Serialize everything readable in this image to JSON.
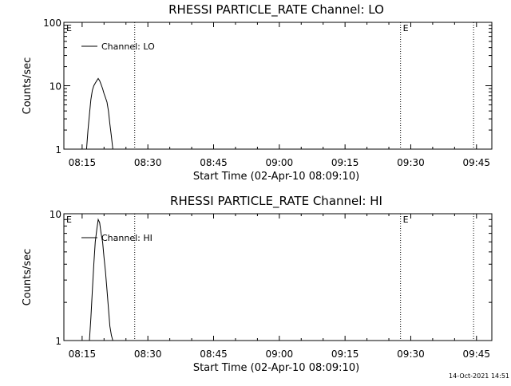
{
  "figure": {
    "timestamp": "14-Oct-2021 14:51"
  },
  "chart_data": [
    {
      "type": "line",
      "title": "RHESSI PARTICLE_RATE Channel: LO",
      "xlabel": "Start Time (02-Apr-10 08:09:10)",
      "ylabel": "Counts/sec",
      "yscale": "log",
      "xlim": [
        "08:10:50",
        "09:48:30"
      ],
      "ylim": [
        1,
        100
      ],
      "x_ticks": [
        "08:15",
        "08:30",
        "08:45",
        "09:00",
        "09:15",
        "09:30",
        "09:45"
      ],
      "y_ticks": [
        "1",
        "10",
        "100"
      ],
      "legend": "top-left",
      "series": [
        {
          "name": "Channel: LO",
          "color": "#000000",
          "x": [
            "08:16:00",
            "08:16:20",
            "08:16:40",
            "08:17:00",
            "08:17:20",
            "08:17:40",
            "08:18:00",
            "08:18:20",
            "08:18:40",
            "08:19:00",
            "08:19:20",
            "08:19:40",
            "08:20:00",
            "08:20:20",
            "08:20:40",
            "08:21:00",
            "08:21:20",
            "08:21:40",
            "08:22:00"
          ],
          "y": [
            1.0,
            2.0,
            3.5,
            6.0,
            8.5,
            10.0,
            11.0,
            12.0,
            13.0,
            12.0,
            10.5,
            9.0,
            7.5,
            6.5,
            5.5,
            4.0,
            2.5,
            1.6,
            1.0
          ]
        }
      ],
      "vlines": [
        "08:27:00",
        "09:27:40",
        "09:44:20"
      ],
      "markers": [
        {
          "label": "E",
          "x": "08:10:50"
        },
        {
          "label": "E",
          "x": "09:27:40"
        }
      ]
    },
    {
      "type": "line",
      "title": "RHESSI PARTICLE_RATE Channel: HI",
      "xlabel": "Start Time (02-Apr-10 08:09:10)",
      "ylabel": "Counts/sec",
      "yscale": "log",
      "xlim": [
        "08:10:50",
        "09:48:30"
      ],
      "ylim": [
        1,
        10
      ],
      "x_ticks": [
        "08:15",
        "08:30",
        "08:45",
        "09:00",
        "09:15",
        "09:30",
        "09:45"
      ],
      "y_ticks": [
        "1",
        "10"
      ],
      "legend": "top-left",
      "series": [
        {
          "name": "Channel: HI",
          "color": "#000000",
          "x": [
            "08:16:40",
            "08:17:00",
            "08:17:20",
            "08:17:40",
            "08:18:00",
            "08:18:20",
            "08:18:40",
            "08:19:00",
            "08:19:20",
            "08:19:40",
            "08:20:00",
            "08:20:20",
            "08:20:40",
            "08:21:00",
            "08:21:20",
            "08:21:40",
            "08:22:00"
          ],
          "y": [
            1.0,
            1.5,
            2.5,
            4.0,
            6.0,
            7.5,
            9.0,
            8.5,
            7.0,
            6.0,
            4.5,
            3.5,
            2.5,
            1.8,
            1.3,
            1.1,
            1.0
          ]
        }
      ],
      "vlines": [
        "08:27:00",
        "09:27:40",
        "09:44:20"
      ],
      "markers": [
        {
          "label": "E",
          "x": "08:10:50"
        },
        {
          "label": "E",
          "x": "09:27:40"
        }
      ]
    }
  ]
}
